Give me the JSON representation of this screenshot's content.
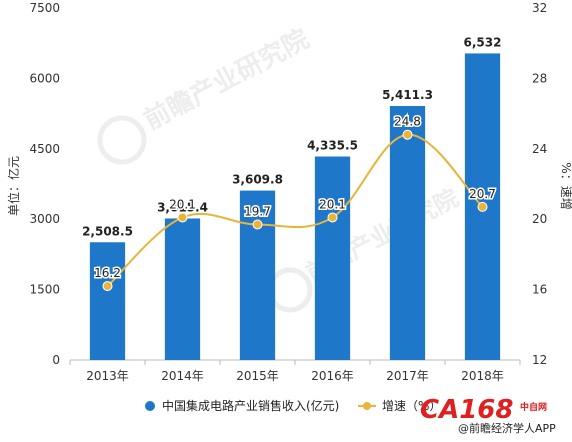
{
  "chart_data": {
    "type": "bar",
    "categories": [
      "2013年",
      "2014年",
      "2015年",
      "2016年",
      "2017年",
      "2018年"
    ],
    "series": [
      {
        "name": "中国集成电路产业销售收入(亿元)",
        "type": "bar",
        "axis": "left",
        "values": [
          2508.5,
          3015.4,
          3609.8,
          4335.5,
          5411.3,
          6532
        ],
        "labels": [
          "2,508.5",
          "3,015.4",
          "3,609.8",
          "4,335.5",
          "5,411.3",
          "6,532"
        ]
      },
      {
        "name": "增速（%）",
        "type": "line",
        "axis": "right",
        "values": [
          16.2,
          20.1,
          19.7,
          20.1,
          24.8,
          20.7
        ],
        "labels": [
          "16.2",
          "20.1",
          "19.7",
          "20.1",
          "24.8",
          "20.7"
        ]
      }
    ],
    "y_left": {
      "label": "单位：亿元",
      "ticks": [
        "0",
        "1500",
        "3000",
        "4500",
        "6000",
        "7500"
      ],
      "range": [
        0,
        7500
      ]
    },
    "y_right": {
      "label": "%：速增",
      "ticks": [
        "12",
        "16",
        "20",
        "24",
        "28",
        "32"
      ],
      "range": [
        12,
        32
      ]
    },
    "grid": false,
    "legend": "bottom"
  },
  "colors": {
    "bar": "#1f77c9",
    "line": "#e8b53a",
    "axis": "#bbbbbb",
    "text": "#333333",
    "logo": "#e02020"
  },
  "legend_items": [
    {
      "label": "中国集成电路产业销售收入(亿元)",
      "icon": "blue-dot-icon"
    },
    {
      "label": "增速（%）",
      "icon": "orange-line-dot-icon"
    }
  ],
  "watermark": {
    "text": "前瞻产业研究院"
  },
  "logo": {
    "main": "CA168",
    "sub": "中自网"
  },
  "source": {
    "text": "@前瞻经济学人APP"
  }
}
